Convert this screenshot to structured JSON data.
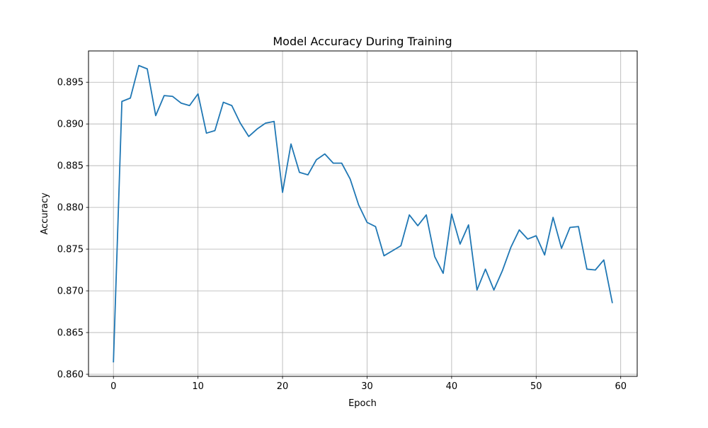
{
  "chart_data": {
    "type": "line",
    "title": "Model Accuracy During Training",
    "xlabel": "Epoch",
    "ylabel": "Accuracy",
    "xlim": [
      -2.95,
      61.95
    ],
    "ylim": [
      0.85975,
      0.89875
    ],
    "xticks": [
      0,
      10,
      20,
      30,
      40,
      50,
      60
    ],
    "yticks": [
      0.86,
      0.865,
      0.87,
      0.875,
      0.88,
      0.885,
      0.89,
      0.895
    ],
    "ytick_labels": [
      "0.860",
      "0.865",
      "0.870",
      "0.875",
      "0.880",
      "0.885",
      "0.890",
      "0.895"
    ],
    "grid": true,
    "line_color": "#1f77b4",
    "series": [
      {
        "x": [
          0,
          1,
          2,
          3,
          4,
          5,
          6,
          7,
          8,
          9,
          10,
          11,
          12,
          13,
          14,
          15,
          16,
          17,
          18,
          19,
          20,
          21,
          22,
          23,
          24,
          25,
          26,
          27,
          28,
          29,
          30,
          31,
          32,
          33,
          34,
          35,
          36,
          37,
          38,
          39,
          40,
          41,
          42,
          43,
          44,
          45,
          46,
          47,
          48,
          49,
          50,
          51,
          52,
          53,
          54,
          55,
          56,
          57,
          58,
          59
        ],
        "values": [
          0.8615,
          0.8927,
          0.8931,
          0.897,
          0.8966,
          0.891,
          0.8934,
          0.8933,
          0.8925,
          0.8922,
          0.8936,
          0.8889,
          0.8892,
          0.8926,
          0.8922,
          0.8901,
          0.8885,
          0.8894,
          0.8901,
          0.8903,
          0.8818,
          0.8876,
          0.8842,
          0.8839,
          0.8857,
          0.8864,
          0.8853,
          0.8853,
          0.8834,
          0.8803,
          0.8782,
          0.8777,
          0.8742,
          0.8748,
          0.8754,
          0.8791,
          0.8778,
          0.8791,
          0.8741,
          0.8721,
          0.8792,
          0.8756,
          0.8779,
          0.8701,
          0.8726,
          0.8701,
          0.8724,
          0.8752,
          0.8773,
          0.8762,
          0.8766,
          0.8743,
          0.8788,
          0.8751,
          0.8776,
          0.8777,
          0.8726,
          0.8725,
          0.8737,
          0.8686
        ]
      }
    ]
  }
}
